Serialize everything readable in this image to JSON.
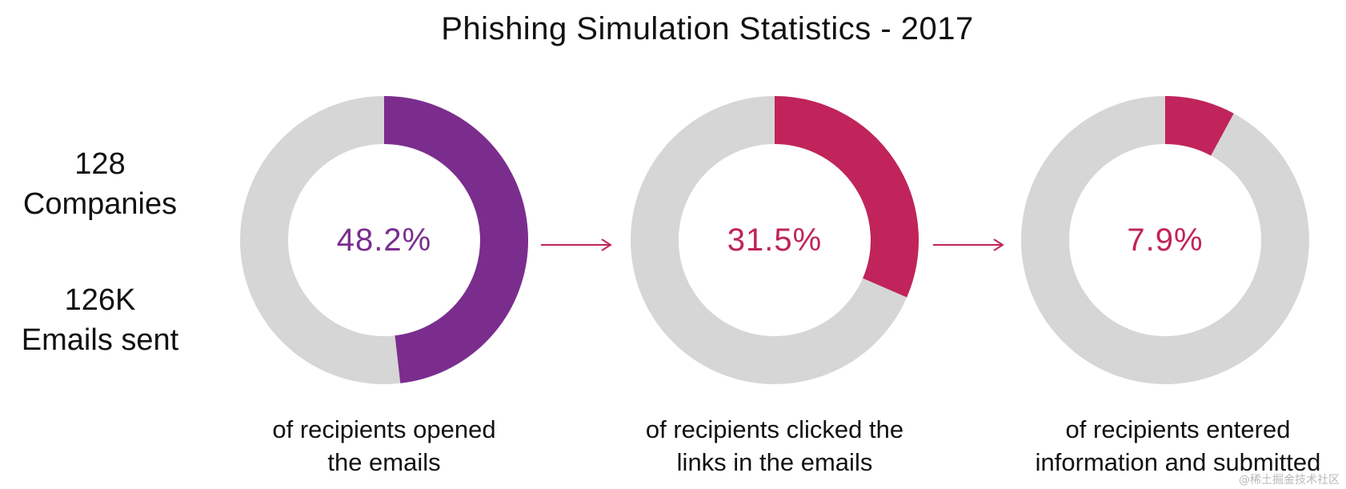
{
  "title": "Phishing Simulation Statistics - 2017",
  "stats": {
    "companies": {
      "value": "128",
      "label": "Companies"
    },
    "emails": {
      "value": "126K",
      "label": "Emails sent"
    }
  },
  "colors": {
    "track": "#d6d6d6",
    "opened": "#7b2d8e",
    "clicked": "#c0245a",
    "submitted": "#c0245a",
    "arrow": "#c0245a",
    "text": "#111111"
  },
  "chart_data": {
    "type": "pie",
    "variant": "donut",
    "title": "Phishing Simulation Statistics - 2017",
    "series": [
      {
        "label": "48.2%",
        "value": 48.2,
        "caption": [
          "of recipients opened",
          "the emails"
        ],
        "color": "#7b2d8e"
      },
      {
        "label": "31.5%",
        "value": 31.5,
        "caption": [
          "of recipients clicked the",
          "links in the emails"
        ],
        "color": "#c0245a"
      },
      {
        "label": "7.9%",
        "value": 7.9,
        "caption": [
          "of recipients entered",
          "information and submitted"
        ],
        "color": "#c0245a"
      }
    ]
  },
  "watermark": "@稀土掘金技术社区"
}
